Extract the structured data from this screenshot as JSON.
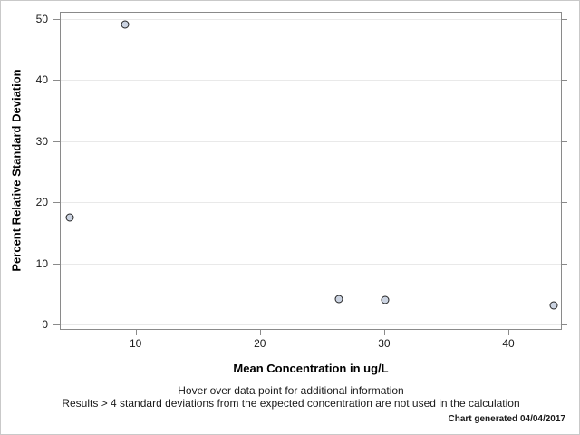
{
  "chart_data": {
    "type": "scatter",
    "title": "",
    "xlabel": "Mean Concentration in ug/L",
    "ylabel": "Percent Relative Standard Deviation",
    "xlim": [
      3.9,
      44.3
    ],
    "ylim": [
      -0.9,
      51.2
    ],
    "x_ticks": [
      10,
      20,
      30,
      40
    ],
    "y_ticks": [
      0,
      10,
      20,
      30,
      40,
      50
    ],
    "grid": "horizontal-only",
    "legend": "none",
    "points": [
      {
        "x": 4.6,
        "y": 17.6
      },
      {
        "x": 9.1,
        "y": 49.3
      },
      {
        "x": 26.3,
        "y": 4.3
      },
      {
        "x": 30.0,
        "y": 4.1
      },
      {
        "x": 43.6,
        "y": 3.2
      }
    ],
    "marker": {
      "shape": "circle",
      "fill": "#ccd4e2",
      "stroke": "#222222"
    }
  },
  "footer": {
    "line1": "Hover over data point for additional information",
    "line2": "Results > 4 standard deviations from the expected concentration are not used in the calculation",
    "generated": "Chart generated 04/04/2017"
  },
  "colors": {
    "frame_border": "#c9c9c9",
    "axis_border": "#8a8a8a",
    "gridline": "#e9e9e9",
    "text": "#1a1a1a",
    "background": "#ffffff"
  }
}
